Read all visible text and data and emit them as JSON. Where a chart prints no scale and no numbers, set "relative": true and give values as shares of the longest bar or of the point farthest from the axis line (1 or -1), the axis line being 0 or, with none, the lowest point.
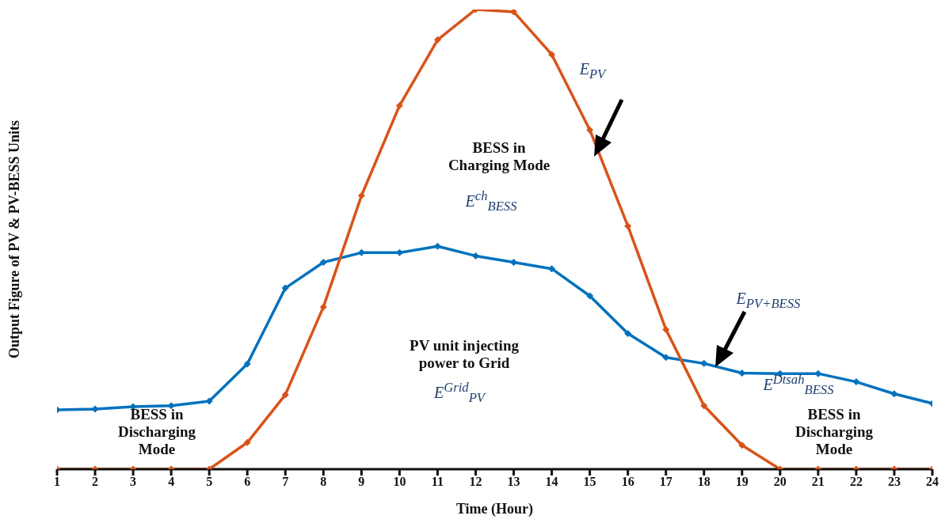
{
  "chart_data": {
    "type": "line",
    "relative": true,
    "xlabel": "Time (Hour)",
    "ylabel": "Output Figure of PV & PV-BESS Units",
    "x": [
      1,
      2,
      3,
      4,
      5,
      6,
      7,
      8,
      9,
      10,
      11,
      12,
      13,
      14,
      15,
      16,
      17,
      18,
      19,
      20,
      21,
      22,
      23,
      24
    ],
    "xlim": [
      1,
      24
    ],
    "xticks": [
      1,
      2,
      3,
      4,
      5,
      6,
      7,
      8,
      9,
      10,
      11,
      12,
      13,
      14,
      15,
      16,
      17,
      18,
      19,
      20,
      21,
      22,
      23,
      24
    ],
    "marker": "diamond",
    "line_style": "solid",
    "series": [
      {
        "color": "#0072bd",
        "values": [
          0.129,
          0.131,
          0.136,
          0.138,
          0.148,
          0.229,
          0.394,
          0.45,
          0.471,
          0.471,
          0.485,
          0.464,
          0.45,
          0.436,
          0.377,
          0.295,
          0.243,
          0.23,
          0.209,
          0.208,
          0.208,
          0.19,
          0.164,
          0.143
        ]
      },
      {
        "color": "#d95319",
        "values": [
          0,
          0,
          0,
          0,
          0,
          0.058,
          0.162,
          0.353,
          0.595,
          0.791,
          0.934,
          1,
          0.995,
          0.902,
          0.738,
          0.529,
          0.304,
          0.138,
          0.052,
          0,
          0,
          0,
          0,
          0
        ]
      }
    ],
    "annotations": [
      "E$_{PV}$",
      "BESS in\nCharging Mode",
      "E$^{ch}$$_{BESS}$",
      "PV unit injecting\npower to Grid",
      "E$^{Grid}$$_{PV}$",
      "E$_{PV+BESS}$",
      "E$^{Dtsah}$$_{BESS}$",
      "BESS in\nDischarging\nMode",
      "BESS in\nDischarging\nMode"
    ]
  }
}
